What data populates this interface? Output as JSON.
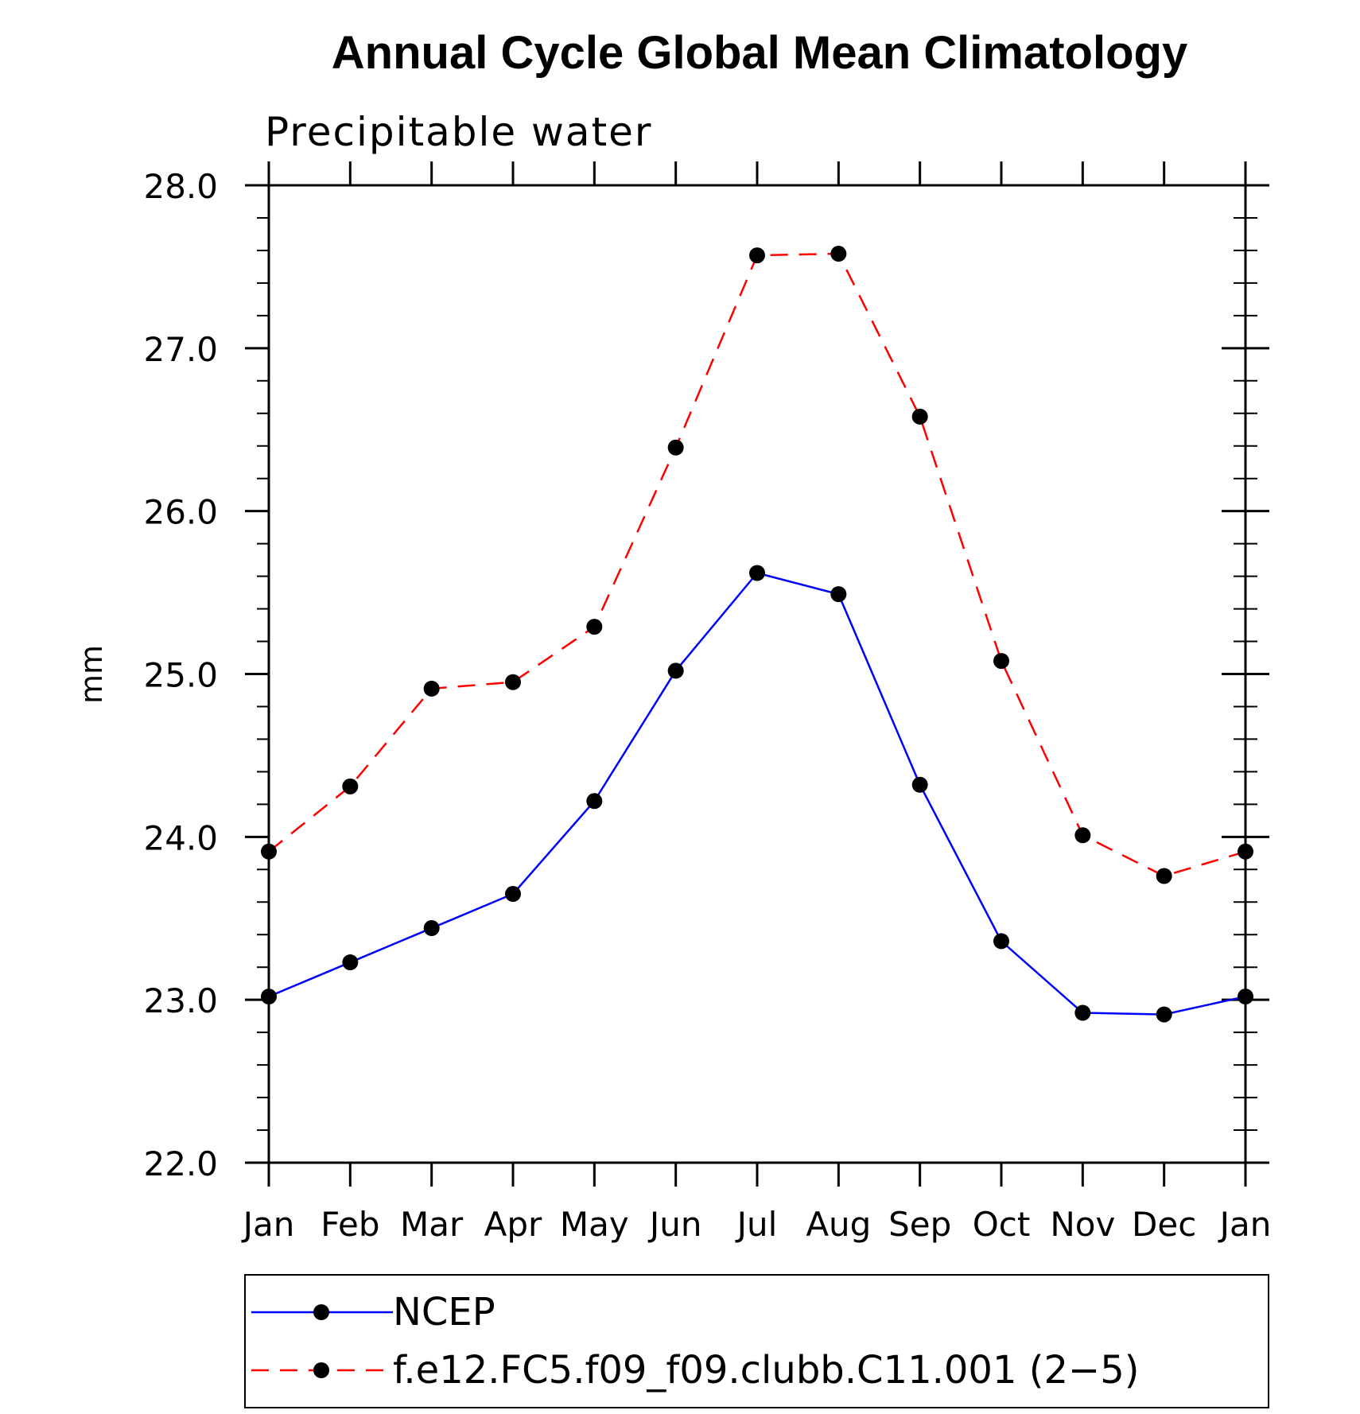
{
  "chart_data": {
    "type": "line",
    "title": "Annual Cycle Global Mean Climatology",
    "subtitle": "Precipitable water",
    "xlabel": "",
    "ylabel": "mm",
    "categories": [
      "Jan",
      "Feb",
      "Mar",
      "Apr",
      "May",
      "Jun",
      "Jul",
      "Aug",
      "Sep",
      "Oct",
      "Nov",
      "Dec",
      "Jan"
    ],
    "ylim": [
      22.0,
      28.0
    ],
    "yticks": [
      "22.0",
      "23.0",
      "24.0",
      "25.0",
      "26.0",
      "27.0",
      "28.0"
    ],
    "series": [
      {
        "name": "NCEP",
        "color": "#0000ff",
        "style": "solid",
        "values": [
          23.02,
          23.23,
          23.44,
          23.65,
          24.22,
          25.02,
          25.62,
          25.49,
          24.32,
          23.36,
          22.92,
          22.91,
          23.02
        ]
      },
      {
        "name": "f.e12.FC5.f09_f09.clubb.C11.001 (2−5)",
        "color": "#ff0000",
        "style": "dashed",
        "values": [
          23.91,
          24.31,
          24.91,
          24.95,
          25.29,
          26.39,
          27.57,
          27.58,
          26.58,
          25.08,
          24.01,
          23.76,
          23.91
        ]
      }
    ],
    "legend_position": "bottom"
  }
}
